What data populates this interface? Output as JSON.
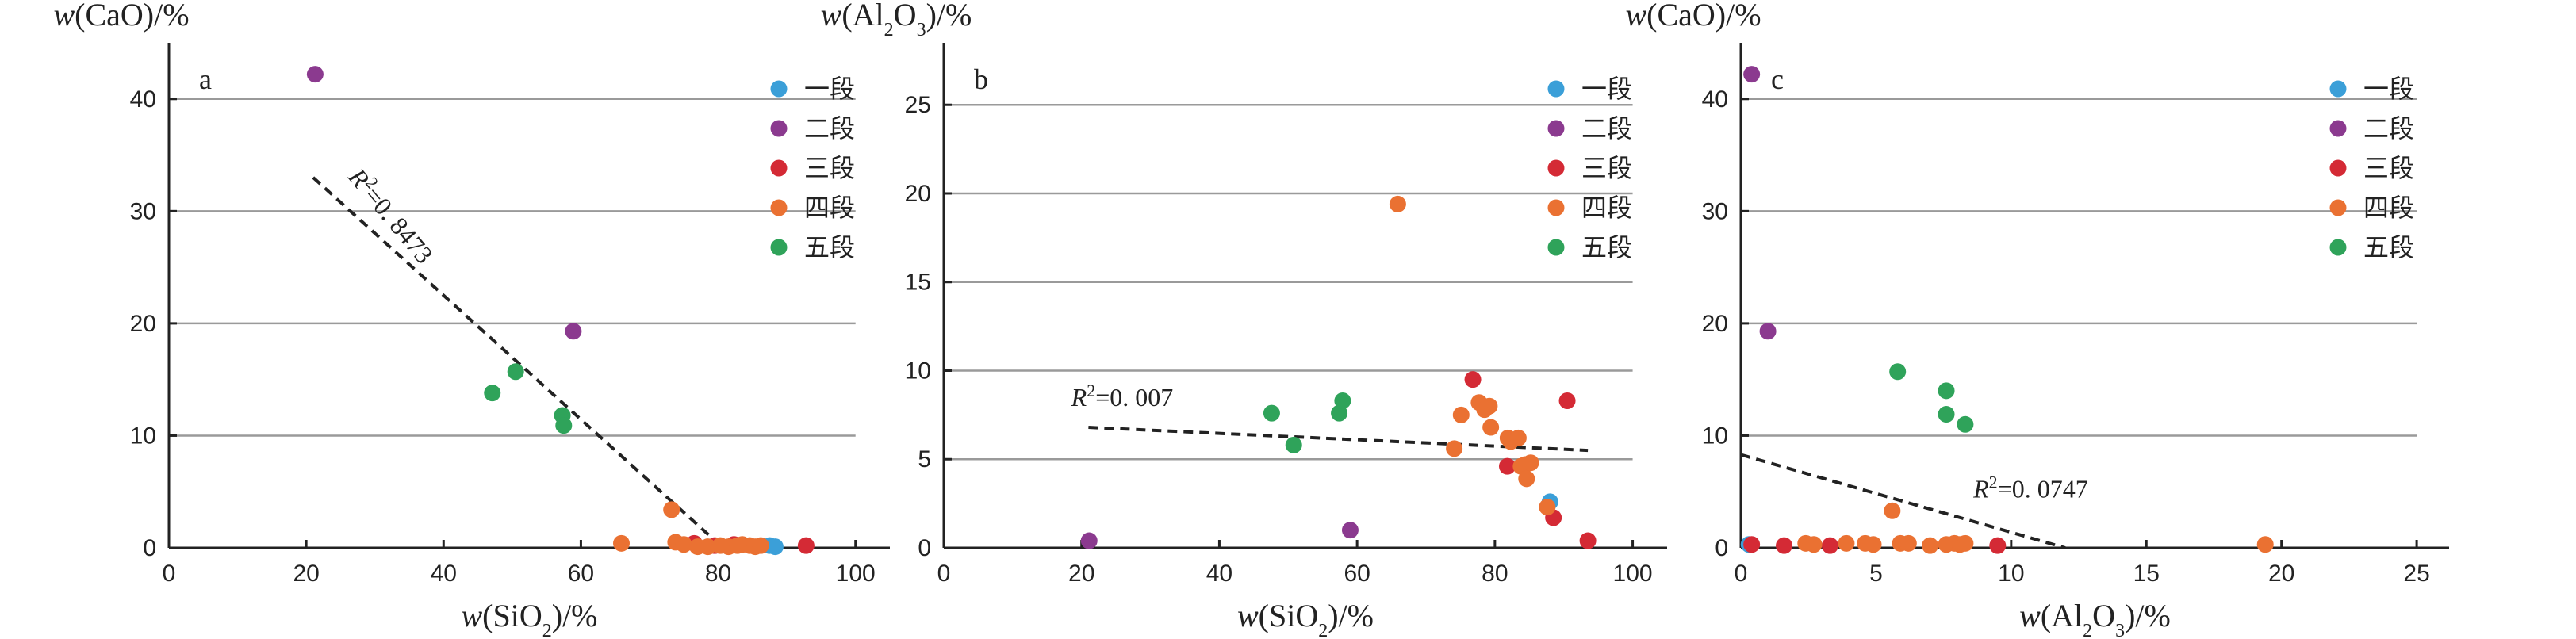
{
  "legend": [
    {
      "label": "一段",
      "color": "#3b9fd8"
    },
    {
      "label": "二段",
      "color": "#8b3a8f"
    },
    {
      "label": "三段",
      "color": "#d42a35"
    },
    {
      "label": "四段",
      "color": "#ea7132"
    },
    {
      "label": "五段",
      "color": "#2fa35a"
    }
  ],
  "chart_data": [
    {
      "type": "scatter",
      "panel": "a",
      "ylabel_html": "<tspan font-style=\"italic\">w</tspan>(CaO)/%",
      "xlabel_html": "<tspan font-style=\"italic\">w</tspan>(SiO<tspan baseline-shift=\"sub\" font-size=\"24\">2</tspan>)/%",
      "xlim": [
        0,
        105
      ],
      "ylim": [
        0,
        45
      ],
      "xticks": [
        0,
        20,
        40,
        60,
        80,
        100
      ],
      "yticks": [
        0,
        10,
        20,
        30,
        40
      ],
      "gridlines_y": [
        10,
        20,
        30,
        40
      ],
      "grid_x_end": 100,
      "legend_placement": "right",
      "series": [
        {
          "name": "一段",
          "points": [
            [
              87.5,
              0.2
            ],
            [
              88.3,
              0.1
            ]
          ]
        },
        {
          "name": "二段",
          "points": [
            [
              21.3,
              42.2
            ],
            [
              58.9,
              19.3
            ]
          ]
        },
        {
          "name": "三段",
          "points": [
            [
              76.5,
              0.4
            ],
            [
              79.5,
              0.2
            ],
            [
              82.3,
              0.3
            ],
            [
              92.8,
              0.2
            ]
          ]
        },
        {
          "name": "四段",
          "points": [
            [
              65.9,
              0.4
            ],
            [
              73.2,
              3.4
            ],
            [
              73.8,
              0.5
            ],
            [
              75.0,
              0.3
            ],
            [
              77.0,
              0.1
            ],
            [
              78.5,
              0.1
            ],
            [
              80.3,
              0.2
            ],
            [
              81.5,
              0.1
            ],
            [
              82.8,
              0.2
            ],
            [
              83.5,
              0.3
            ],
            [
              84.6,
              0.2
            ],
            [
              85.4,
              0.1
            ],
            [
              86.2,
              0.2
            ]
          ]
        },
        {
          "name": "五段",
          "points": [
            [
              47.1,
              13.8
            ],
            [
              50.5,
              15.7
            ],
            [
              57.3,
              11.8
            ],
            [
              57.5,
              10.9
            ]
          ]
        }
      ],
      "fit": {
        "x": [
          21.0,
          80.7
        ],
        "y": [
          33.0,
          0.0
        ],
        "label_html": "<tspan font-style=\"italic\">R</tspan><tspan baseline-shift=\"super\" font-size=\"22\">2</tspan>=0. 8473",
        "label_at": [
          26,
          33
        ],
        "label_angle": 50
      }
    },
    {
      "type": "scatter",
      "panel": "b",
      "ylabel_html": "<tspan font-style=\"italic\">w</tspan>(Al<tspan baseline-shift=\"sub\" font-size=\"24\">2</tspan>O<tspan baseline-shift=\"sub\" font-size=\"24\">3</tspan>)/%",
      "xlabel_html": "<tspan font-style=\"italic\">w</tspan>(SiO<tspan baseline-shift=\"sub\" font-size=\"24\">2</tspan>)/%",
      "xlim": [
        0,
        105
      ],
      "ylim": [
        0,
        28.5
      ],
      "xticks": [
        0,
        20,
        40,
        60,
        80,
        100
      ],
      "yticks": [
        0,
        5,
        10,
        15,
        20,
        25
      ],
      "gridlines_y": [
        5,
        10,
        15,
        20,
        25
      ],
      "grid_x_end": 100,
      "legend_placement": "right",
      "series": [
        {
          "name": "一段",
          "points": [
            [
              88.0,
              2.6
            ]
          ]
        },
        {
          "name": "二段",
          "points": [
            [
              21.1,
              0.4
            ],
            [
              59.0,
              1.0
            ]
          ]
        },
        {
          "name": "三段",
          "points": [
            [
              76.8,
              9.5
            ],
            [
              81.8,
              4.6
            ],
            [
              88.5,
              1.7
            ],
            [
              90.5,
              8.3
            ],
            [
              93.5,
              0.4
            ]
          ]
        },
        {
          "name": "四段",
          "points": [
            [
              65.9,
              19.4
            ],
            [
              74.1,
              5.6
            ],
            [
              75.1,
              7.5
            ],
            [
              77.7,
              8.2
            ],
            [
              78.5,
              7.8
            ],
            [
              79.2,
              8.0
            ],
            [
              79.4,
              6.8
            ],
            [
              81.9,
              6.2
            ],
            [
              82.3,
              6.0
            ],
            [
              83.4,
              6.2
            ],
            [
              83.8,
              4.6
            ],
            [
              84.4,
              4.7
            ],
            [
              84.6,
              3.9
            ],
            [
              85.2,
              4.8
            ],
            [
              87.6,
              2.3
            ]
          ]
        },
        {
          "name": "五段",
          "points": [
            [
              47.6,
              7.6
            ],
            [
              50.8,
              5.8
            ],
            [
              57.4,
              7.6
            ],
            [
              57.9,
              8.3
            ]
          ]
        }
      ],
      "fit": {
        "x": [
          21.0,
          93.5
        ],
        "y": [
          6.8,
          5.5
        ],
        "label_html": "<tspan font-style=\"italic\">R</tspan><tspan baseline-shift=\"super\" font-size=\"22\">2</tspan>=0. 007",
        "label_at": [
          18.5,
          8.0
        ],
        "label_angle": 0
      }
    },
    {
      "type": "scatter",
      "panel": "c",
      "ylabel_html": "<tspan font-style=\"italic\">w</tspan>(CaO)/%",
      "xlabel_html": "<tspan font-style=\"italic\">w</tspan>(Al<tspan baseline-shift=\"sub\" font-size=\"24\">2</tspan>O<tspan baseline-shift=\"sub\" font-size=\"24\">3</tspan>)/%",
      "xlim": [
        0,
        26.2
      ],
      "ylim": [
        0,
        45
      ],
      "xticks": [
        0,
        5,
        10,
        15,
        20,
        25
      ],
      "yticks": [
        0,
        10,
        20,
        30,
        40
      ],
      "gridlines_y": [
        10,
        20,
        30,
        40
      ],
      "grid_x_end": 25,
      "legend_placement": "right",
      "series": [
        {
          "name": "一段",
          "points": [
            [
              0.3,
              0.3
            ]
          ]
        },
        {
          "name": "二段",
          "points": [
            [
              0.4,
              42.2
            ],
            [
              1.0,
              19.3
            ]
          ]
        },
        {
          "name": "三段",
          "points": [
            [
              0.4,
              0.3
            ],
            [
              1.6,
              0.2
            ],
            [
              3.3,
              0.2
            ],
            [
              9.5,
              0.2
            ]
          ]
        },
        {
          "name": "四段",
          "points": [
            [
              2.4,
              0.4
            ],
            [
              2.7,
              0.3
            ],
            [
              3.9,
              0.4
            ],
            [
              4.6,
              0.4
            ],
            [
              4.9,
              0.3
            ],
            [
              5.6,
              3.3
            ],
            [
              5.9,
              0.4
            ],
            [
              6.2,
              0.4
            ],
            [
              7.0,
              0.2
            ],
            [
              7.6,
              0.3
            ],
            [
              7.9,
              0.4
            ],
            [
              8.1,
              0.3
            ],
            [
              8.3,
              0.4
            ],
            [
              19.4,
              0.3
            ]
          ]
        },
        {
          "name": "五段",
          "points": [
            [
              5.8,
              15.7
            ],
            [
              7.6,
              14.0
            ],
            [
              7.6,
              11.9
            ],
            [
              8.3,
              11.0
            ]
          ]
        }
      ],
      "fit": {
        "x": [
          0.0,
          12.0
        ],
        "y": [
          8.3,
          0.0
        ],
        "label_html": "<tspan font-style=\"italic\">R</tspan><tspan baseline-shift=\"super\" font-size=\"22\">2</tspan>=0. 0747",
        "label_at": [
          8.6,
          4.5
        ],
        "label_angle": 0
      }
    }
  ]
}
